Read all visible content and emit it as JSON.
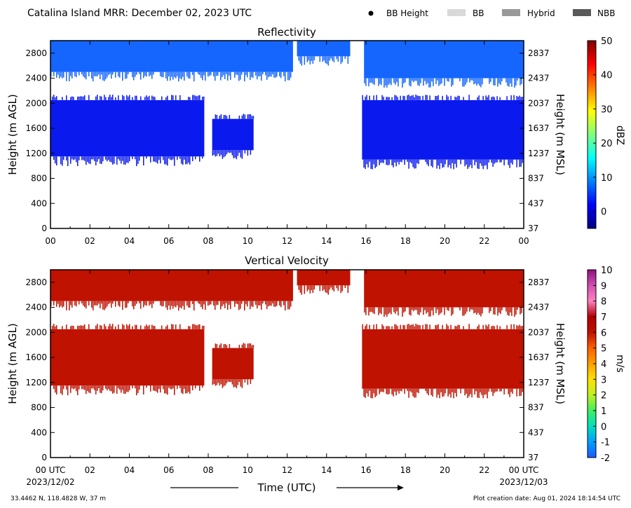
{
  "header": {
    "title": "Catalina Island MRR:  December 02, 2023 UTC",
    "legend": [
      {
        "label": "BB Height",
        "color": "#000000",
        "kind": "dot"
      },
      {
        "label": "BB",
        "color": "#d9d9d9",
        "kind": "bar"
      },
      {
        "label": "Hybrid",
        "color": "#999999",
        "kind": "bar"
      },
      {
        "label": "NBB",
        "color": "#595959",
        "kind": "bar"
      }
    ]
  },
  "footer": {
    "location": "33.4462 N, 118.4828 W, 37 m",
    "creation": "Plot creation date: Aug 01, 2024 18:14:54 UTC",
    "time_label": "Time (UTC)",
    "date_start": "2023/12/02",
    "date_end": "2023/12/03"
  },
  "chart_data": [
    {
      "type": "heatmap",
      "title": "Reflectivity",
      "ylabel": "Height (m AGL)",
      "ylabel_right": "Height (m MSL)",
      "xlabel": "",
      "xlim": [
        0,
        24
      ],
      "ylim": [
        0,
        3000
      ],
      "x_ticks": [
        "00",
        "02",
        "04",
        "06",
        "08",
        "10",
        "12",
        "14",
        "16",
        "18",
        "20",
        "22",
        "00"
      ],
      "y_ticks": [
        0,
        400,
        800,
        1200,
        1600,
        2000,
        2400,
        2800
      ],
      "y_ticks_right": [
        37,
        437,
        837,
        1237,
        1637,
        2037,
        2437,
        2837
      ],
      "colorbar": {
        "label": "dBZ",
        "range": [
          -5,
          50
        ],
        "ticks": [
          0,
          10,
          20,
          30,
          40,
          50
        ],
        "colors": [
          "#00007f",
          "#0000ff",
          "#007fff",
          "#00ffff",
          "#7fff7f",
          "#ffff00",
          "#ff7f00",
          "#ff0000",
          "#7f0000"
        ]
      },
      "regions": [
        {
          "x0": 0,
          "x1": 12.3,
          "y0": 2500,
          "y1": 3000,
          "color": "#1466ff"
        },
        {
          "x0": 12.5,
          "x1": 15.2,
          "y0": 2750,
          "y1": 3000,
          "color": "#1466ff"
        },
        {
          "x0": 15.9,
          "x1": 24,
          "y0": 2400,
          "y1": 3000,
          "color": "#1466ff"
        },
        {
          "x0": 0,
          "x1": 7.8,
          "y0": 1150,
          "y1": 2050,
          "color": "#0a1aee"
        },
        {
          "x0": 8.2,
          "x1": 10.3,
          "y0": 1250,
          "y1": 1750,
          "color": "#0a1aee"
        },
        {
          "x0": 15.8,
          "x1": 24,
          "y0": 1100,
          "y1": 2050,
          "color": "#0a1aee"
        }
      ]
    },
    {
      "type": "heatmap",
      "title": "Vertical Velocity",
      "ylabel": "Height (m AGL)",
      "ylabel_right": "Height (m MSL)",
      "xlabel": "Time (UTC)",
      "xlim": [
        0,
        24
      ],
      "ylim": [
        0,
        3000
      ],
      "x_ticks": [
        "00 UTC",
        "02",
        "04",
        "06",
        "08",
        "10",
        "12",
        "14",
        "16",
        "18",
        "20",
        "22",
        "00 UTC"
      ],
      "y_ticks": [
        0,
        400,
        800,
        1200,
        1600,
        2000,
        2400,
        2800
      ],
      "y_ticks_right": [
        37,
        437,
        837,
        1237,
        1637,
        2037,
        2437,
        2837
      ],
      "colorbar": {
        "label": "m/s",
        "range": [
          -2,
          10
        ],
        "ticks": [
          -2,
          -1,
          0,
          1,
          2,
          3,
          4,
          5,
          6,
          7,
          8,
          9,
          10
        ],
        "colors": [
          "#1a5cff",
          "#00a0ff",
          "#00e0c0",
          "#40f060",
          "#c0f020",
          "#ffe000",
          "#ffa000",
          "#ff6000",
          "#c01000",
          "#b00000",
          "#ff80c0",
          "#d050b0",
          "#901080"
        ]
      },
      "regions": [
        {
          "x0": 0,
          "x1": 12.3,
          "y0": 2500,
          "y1": 3000,
          "color": "#bf1200"
        },
        {
          "x0": 12.5,
          "x1": 15.2,
          "y0": 2750,
          "y1": 3000,
          "color": "#bf1200"
        },
        {
          "x0": 15.9,
          "x1": 24,
          "y0": 2400,
          "y1": 3000,
          "color": "#bf1200"
        },
        {
          "x0": 0,
          "x1": 7.8,
          "y0": 1150,
          "y1": 2050,
          "color": "#bf1200"
        },
        {
          "x0": 8.2,
          "x1": 10.3,
          "y0": 1250,
          "y1": 1750,
          "color": "#bf1200"
        },
        {
          "x0": 15.8,
          "x1": 24,
          "y0": 1100,
          "y1": 2050,
          "color": "#bf1200"
        }
      ]
    }
  ]
}
